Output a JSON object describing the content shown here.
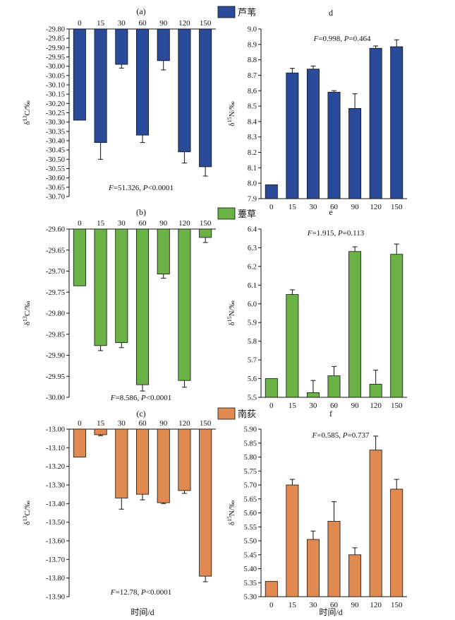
{
  "xlabel": "时间/d",
  "colors": {
    "reed": "#2a4a9a",
    "sedge": "#6ab146",
    "nanhuo": "#e08a52",
    "axis": "#111111"
  },
  "legend": [
    {
      "name": "芦苇",
      "color": "#2a4a9a"
    },
    {
      "name": "薹草",
      "color": "#6ab146"
    },
    {
      "name": "南荻",
      "color": "#e08a52"
    }
  ],
  "chart_data": [
    {
      "panel": "(a)",
      "type": "bar",
      "species": "芦苇",
      "color": "#2a4a9a",
      "categories": [
        "0",
        "15",
        "30",
        "60",
        "90",
        "120",
        "150"
      ],
      "values": [
        -30.29,
        -30.41,
        -29.99,
        -30.37,
        -29.97,
        -30.46,
        -30.54
      ],
      "errors": [
        0.0,
        0.09,
        0.02,
        0.04,
        0.05,
        0.06,
        0.05
      ],
      "ylabel": "δ13C/‰",
      "ylim": [
        -30.7,
        -29.8
      ],
      "yticks": [
        "-29.80",
        "-29.85",
        "-29.90",
        "-29.95",
        "-30.00",
        "-30.05",
        "-30.10",
        "-30.15",
        "-30.20",
        "-30.25",
        "-30.30",
        "-30.35",
        "-30.40",
        "-30.45",
        "-30.50",
        "-30.55",
        "-30.60",
        "-30.65",
        "-30.70"
      ],
      "x_axis_at": "top",
      "stat_F": "51.326",
      "stat_P": "<0.0001"
    },
    {
      "panel": "(b)",
      "type": "bar",
      "species": "薹草",
      "color": "#6ab146",
      "categories": [
        "0",
        "15",
        "30",
        "60",
        "90",
        "120",
        "150"
      ],
      "values": [
        -29.735,
        -29.877,
        -29.87,
        -29.97,
        -29.707,
        -29.96,
        -29.62
      ],
      "errors": [
        0.0,
        0.012,
        0.012,
        0.015,
        0.01,
        0.016,
        0.012
      ],
      "ylabel": "δ13C/‰",
      "ylim": [
        -30.0,
        -29.6
      ],
      "yticks": [
        "-29.60",
        "-29.65",
        "-29.70",
        "-29.75",
        "-29.80",
        "-29.85",
        "-29.90",
        "-29.95",
        "-30.00"
      ],
      "x_axis_at": "top",
      "stat_F": "8.586",
      "stat_P": "<0.0001"
    },
    {
      "panel": "(c)",
      "type": "bar",
      "species": "南荻",
      "color": "#e08a52",
      "categories": [
        "0",
        "15",
        "30",
        "60",
        "90",
        "120",
        "150"
      ],
      "values": [
        -13.15,
        -13.03,
        -13.37,
        -13.35,
        -13.395,
        -13.33,
        -13.79
      ],
      "errors": [
        0.0,
        0.005,
        0.06,
        0.03,
        0.005,
        0.015,
        0.03
      ],
      "ylabel": "δ13C/‰",
      "ylim": [
        -13.9,
        -13.0
      ],
      "yticks": [
        "-13.00",
        "-13.10",
        "-13.20",
        "-13.30",
        "-13.40",
        "-13.50",
        "-13.60",
        "-13.70",
        "-13.80",
        "-13.90"
      ],
      "x_axis_at": "top",
      "stat_F": "12.78",
      "stat_P": "<0.0001"
    },
    {
      "panel": "d",
      "type": "bar",
      "species": "芦苇",
      "color": "#2a4a9a",
      "categories": [
        "0",
        "15",
        "30",
        "60",
        "90",
        "120",
        "150"
      ],
      "values": [
        7.99,
        8.715,
        8.74,
        8.59,
        8.485,
        8.875,
        8.885
      ],
      "errors": [
        0.0,
        0.03,
        0.02,
        0.01,
        0.095,
        0.015,
        0.045
      ],
      "ylabel": "δ15N/‰",
      "ylim": [
        7.9,
        9.0
      ],
      "yticks": [
        "7.9",
        "8.0",
        "8.1",
        "8.2",
        "8.3",
        "8.4",
        "8.5",
        "8.6",
        "8.7",
        "8.8",
        "8.9",
        "9.0"
      ],
      "x_axis_at": "bottom",
      "stat_F": "0.998",
      "stat_P": "0.464"
    },
    {
      "panel": "e",
      "type": "bar",
      "species": "薹草",
      "color": "#6ab146",
      "categories": [
        "0",
        "15",
        "30",
        "60",
        "90",
        "120",
        "150"
      ],
      "values": [
        5.6,
        6.05,
        5.525,
        5.615,
        6.28,
        5.57,
        6.265
      ],
      "errors": [
        0.0,
        0.025,
        0.065,
        0.05,
        0.025,
        0.075,
        0.055
      ],
      "ylabel": "δ15N/‰",
      "ylim": [
        5.5,
        6.4
      ],
      "yticks": [
        "5.5",
        "5.6",
        "5.7",
        "5.8",
        "5.9",
        "6.0",
        "6.1",
        "6.2",
        "6.3",
        "6.4"
      ],
      "x_axis_at": "bottom",
      "stat_F": "1.915",
      "stat_P": "0.113"
    },
    {
      "panel": "f",
      "type": "bar",
      "species": "南荻",
      "color": "#e08a52",
      "categories": [
        "0",
        "15",
        "30",
        "60",
        "90",
        "120",
        "150"
      ],
      "values": [
        5.355,
        5.7,
        5.505,
        5.57,
        5.45,
        5.825,
        5.685
      ],
      "errors": [
        0.0,
        0.02,
        0.03,
        0.07,
        0.025,
        0.05,
        0.035
      ],
      "ylabel": "δ15N/‰",
      "ylim": [
        5.3,
        5.9
      ],
      "yticks": [
        "5.30",
        "5.35",
        "5.40",
        "5.45",
        "5.50",
        "5.55",
        "5.60",
        "5.65",
        "5.70",
        "5.75",
        "5.80",
        "5.85",
        "5.90"
      ],
      "x_axis_at": "bottom",
      "stat_F": "0.585",
      "stat_P": "0.737"
    }
  ]
}
